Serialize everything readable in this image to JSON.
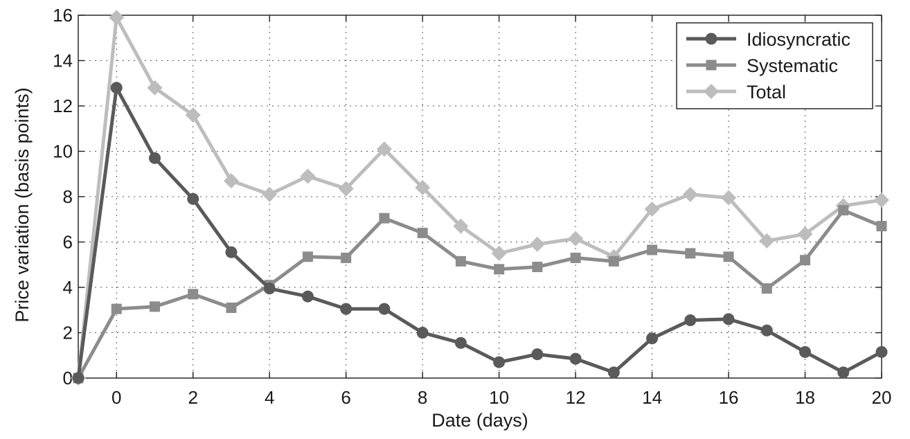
{
  "chart_data": {
    "type": "line",
    "xlabel": "Date (days)",
    "ylabel": "Price variation (basis points)",
    "xlim": [
      -1,
      20
    ],
    "ylim": [
      0,
      16
    ],
    "xticks": [
      0,
      2,
      4,
      6,
      8,
      10,
      12,
      14,
      16,
      18,
      20
    ],
    "yticks": [
      0,
      2,
      4,
      6,
      8,
      10,
      12,
      14,
      16
    ],
    "grid": true,
    "legend_position": "top-right",
    "x": [
      -1,
      0,
      1,
      2,
      3,
      4,
      5,
      6,
      7,
      8,
      9,
      10,
      11,
      12,
      13,
      14,
      15,
      16,
      17,
      18,
      19,
      20
    ],
    "series": [
      {
        "name": "Idiosyncratic",
        "marker": "circle",
        "color": "#5a5a5a",
        "values": [
          0.0,
          12.8,
          9.7,
          7.9,
          5.55,
          3.95,
          3.6,
          3.05,
          3.05,
          2.0,
          1.55,
          0.7,
          1.05,
          0.85,
          0.25,
          1.75,
          2.55,
          2.6,
          2.1,
          1.15,
          0.25,
          1.15
        ]
      },
      {
        "name": "Systematic",
        "marker": "square",
        "color": "#8c8c8c",
        "values": [
          0.0,
          3.05,
          3.15,
          3.7,
          3.1,
          4.1,
          5.35,
          5.3,
          7.05,
          6.4,
          5.15,
          4.8,
          4.9,
          5.3,
          5.15,
          5.65,
          5.5,
          5.35,
          3.95,
          5.2,
          7.4,
          6.7
        ]
      },
      {
        "name": "Total",
        "marker": "diamond",
        "color": "#bdbdbd",
        "values": [
          0.0,
          15.9,
          12.8,
          11.6,
          8.7,
          8.1,
          8.9,
          8.35,
          10.1,
          8.4,
          6.7,
          5.5,
          5.9,
          6.15,
          5.35,
          7.45,
          8.1,
          7.95,
          6.05,
          6.35,
          7.6,
          7.85
        ]
      }
    ]
  }
}
